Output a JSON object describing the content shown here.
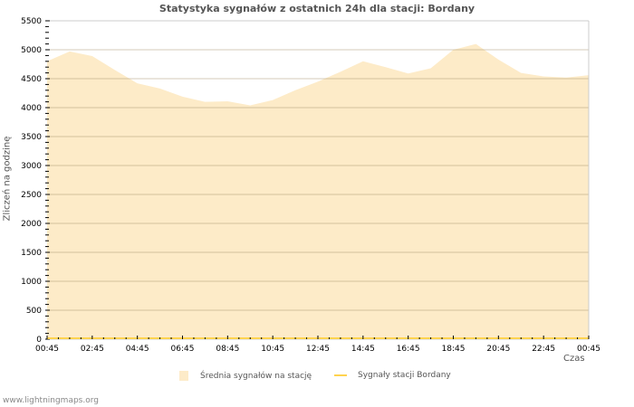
{
  "chart_data": {
    "type": "area",
    "title": "Statystyka sygnałów z ostatnich 24h dla stacji: Bordany",
    "xlabel": "Czas",
    "ylabel": "Zliczeń na godzinę",
    "ylim": [
      0,
      5500
    ],
    "yticks": [
      0,
      500,
      1000,
      1500,
      2000,
      2500,
      3000,
      3500,
      4000,
      4500,
      5000,
      5500
    ],
    "xtick_labels": [
      "00:45",
      "02:45",
      "04:45",
      "06:45",
      "08:45",
      "10:45",
      "12:45",
      "14:45",
      "16:45",
      "18:45",
      "20:45",
      "22:45",
      "00:45"
    ],
    "x_hours": [
      0,
      1,
      2,
      3,
      4,
      5,
      6,
      7,
      8,
      9,
      10,
      11,
      12,
      13,
      14,
      15,
      16,
      17,
      18,
      19,
      20,
      21,
      22,
      23,
      24
    ],
    "grid": true,
    "legend_position": "bottom",
    "series": [
      {
        "name": "Średnia sygnałów na stację",
        "color": "#fdebc8",
        "type": "area",
        "values": [
          4800,
          4970,
          4890,
          4650,
          4420,
          4330,
          4190,
          4100,
          4110,
          4040,
          4130,
          4300,
          4450,
          4620,
          4800,
          4700,
          4590,
          4680,
          5000,
          5100,
          4830,
          4600,
          4540,
          4520,
          4560
        ]
      },
      {
        "name": "Sygnały stacji Bordany",
        "color": "#ffd34f",
        "type": "line",
        "values": [
          0,
          0,
          0,
          0,
          0,
          0,
          0,
          0,
          0,
          0,
          0,
          0,
          0,
          0,
          0,
          0,
          0,
          0,
          0,
          0,
          0,
          0,
          0,
          0,
          0
        ]
      }
    ]
  },
  "footer": {
    "credit": "www.lightningmaps.org"
  }
}
